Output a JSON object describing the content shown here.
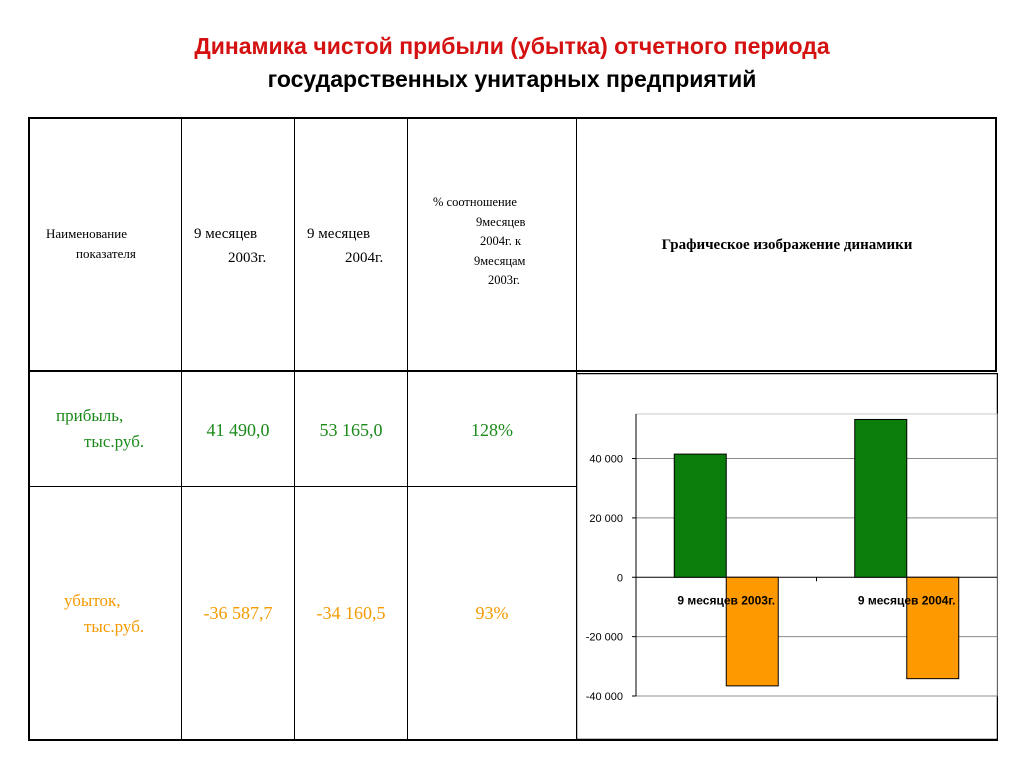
{
  "title": {
    "line1": "Динамика чистой прибыли (убытка) отчетного периода",
    "line2": "государственных унитарных предприятий"
  },
  "table": {
    "headers": {
      "name": [
        "Наименование",
        "показателя"
      ],
      "year2003": [
        "9 месяцев",
        "2003г."
      ],
      "year2004": [
        "9 месяцев",
        "2004г."
      ],
      "ratio": [
        "% соотношение",
        "9месяцев",
        "2004г. к",
        "9месяцам",
        "2003г."
      ],
      "graph": "Графическое изображение динамики"
    },
    "rows": [
      {
        "label": [
          "прибыль,",
          "тыс.руб."
        ],
        "v2003": "41 490,0",
        "v2004": "53 165,0",
        "ratio": "128%"
      },
      {
        "label": [
          "убыток,",
          "тыс.руб."
        ],
        "v2003": "-36 587,7",
        "v2004": "-34 160,5",
        "ratio": "93%"
      }
    ]
  },
  "colors": {
    "title": "#d41010",
    "profit": "#1a8a1a",
    "loss": "#f49a00",
    "bar_profit": "#0a7d0a",
    "bar_loss": "#ff9900"
  },
  "chart_data": {
    "type": "bar",
    "categories": [
      "9 месяцев 2003г.",
      "9 месяцев 2004г."
    ],
    "series": [
      {
        "name": "прибыль, тыс.руб.",
        "values": [
          41490.0,
          53165.0
        ]
      },
      {
        "name": "убыток, тыс.руб.",
        "values": [
          -36587.7,
          -34160.5
        ]
      }
    ],
    "ylim": [
      -40000,
      55000
    ],
    "yticks": [
      -40000,
      -20000,
      0,
      20000,
      40000
    ],
    "ytick_labels": [
      "-40 000",
      "-20 000",
      "0",
      "20 000",
      "40 000"
    ],
    "grid": true,
    "legend": "none"
  }
}
